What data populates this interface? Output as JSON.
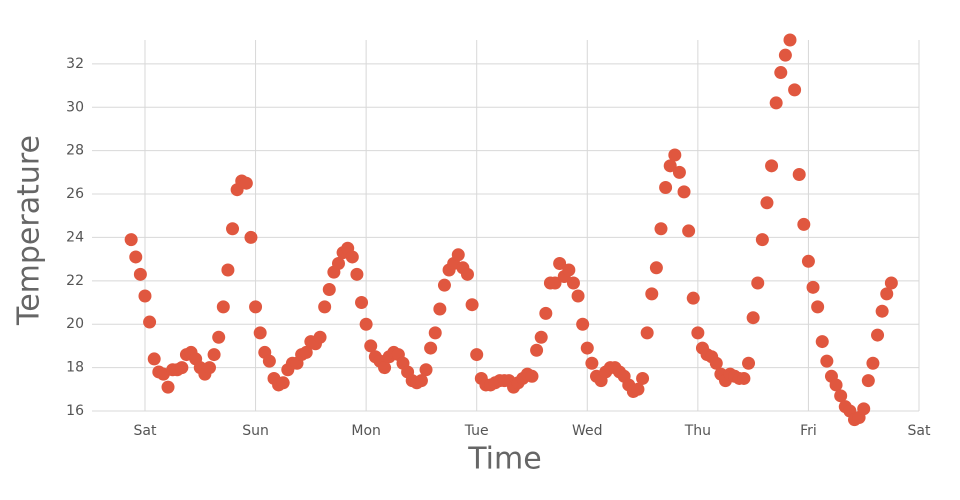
{
  "chart_data": {
    "type": "scatter",
    "x_label": "Time",
    "y_label": "Temperature",
    "color": "#e0573f",
    "grid": true,
    "xlim": [
      -11.5,
      168
    ],
    "ylim": [
      16,
      33.1
    ],
    "xticks": [
      {
        "value": 0,
        "label": "Sat"
      },
      {
        "value": 24,
        "label": "Sun"
      },
      {
        "value": 48,
        "label": "Mon"
      },
      {
        "value": 72,
        "label": "Tue"
      },
      {
        "value": 96,
        "label": "Wed"
      },
      {
        "value": 120,
        "label": "Thu"
      },
      {
        "value": 144,
        "label": "Fri"
      },
      {
        "value": 168,
        "label": "Sat"
      }
    ],
    "yticks": [
      16,
      18,
      20,
      22,
      24,
      26,
      28,
      30,
      32
    ],
    "x": [
      -3,
      -2,
      -1,
      0,
      1,
      2,
      3,
      4,
      5,
      6,
      7,
      8,
      9,
      10,
      11,
      12,
      13,
      14,
      15,
      16,
      17,
      18,
      19,
      20,
      21,
      22,
      23,
      24,
      25,
      26,
      27,
      28,
      29,
      30,
      31,
      32,
      33,
      34,
      35,
      36,
      37,
      38,
      39,
      40,
      41,
      42,
      43,
      44,
      45,
      46,
      47,
      48,
      49,
      50,
      51,
      52,
      53,
      54,
      55,
      56,
      57,
      58,
      59,
      60,
      61,
      62,
      63,
      64,
      65,
      66,
      67,
      68,
      69,
      70,
      71,
      72,
      73,
      74,
      75,
      76,
      77,
      78,
      79,
      80,
      81,
      82,
      83,
      84,
      85,
      86,
      87,
      88,
      89,
      90,
      91,
      92,
      93,
      94,
      95,
      96,
      97,
      98,
      99,
      100,
      101,
      102,
      103,
      104,
      105,
      106,
      107,
      108,
      109,
      110,
      111,
      112,
      113,
      114,
      115,
      116,
      117,
      118,
      119,
      120,
      121,
      122,
      123,
      124,
      125,
      126,
      127,
      128,
      129,
      130,
      131,
      132,
      133,
      134,
      135,
      136,
      137,
      138,
      139,
      140,
      141,
      142,
      143,
      144,
      145,
      146,
      147,
      148,
      149,
      150,
      151,
      152,
      153,
      154,
      155,
      156,
      157,
      158,
      159,
      160,
      161,
      162
    ],
    "values": [
      23.9,
      23.1,
      22.3,
      21.3,
      20.1,
      18.4,
      17.8,
      17.7,
      17.1,
      17.9,
      17.9,
      18.0,
      18.6,
      18.7,
      18.4,
      18.0,
      17.7,
      18.0,
      18.6,
      19.4,
      20.8,
      22.5,
      24.4,
      26.2,
      26.6,
      26.5,
      24.0,
      20.8,
      19.6,
      18.7,
      18.3,
      17.5,
      17.2,
      17.3,
      17.9,
      18.2,
      18.2,
      18.6,
      18.7,
      19.2,
      19.1,
      19.4,
      20.8,
      21.6,
      22.4,
      22.8,
      23.3,
      23.5,
      23.1,
      22.3,
      21.0,
      20.0,
      19.0,
      18.5,
      18.3,
      18.0,
      18.5,
      18.7,
      18.6,
      18.2,
      17.8,
      17.4,
      17.3,
      17.4,
      17.9,
      18.9,
      19.6,
      20.7,
      21.8,
      22.5,
      22.8,
      23.2,
      22.6,
      22.3,
      20.9,
      18.6,
      17.5,
      17.2,
      17.2,
      17.3,
      17.4,
      17.4,
      17.4,
      17.1,
      17.3,
      17.5,
      17.7,
      17.6,
      18.8,
      19.4,
      20.5,
      21.9,
      21.9,
      22.8,
      22.2,
      22.5,
      21.9,
      21.3,
      20.0,
      18.9,
      18.2,
      17.6,
      17.4,
      17.8,
      18.0,
      18.0,
      17.8,
      17.6,
      17.2,
      16.9,
      17.0,
      17.5,
      19.6,
      21.4,
      22.6,
      24.4,
      26.3,
      27.3,
      27.8,
      27.0,
      26.1,
      24.3,
      21.2,
      19.6,
      18.9,
      18.6,
      18.5,
      18.2,
      17.7,
      17.4,
      17.7,
      17.6,
      17.5,
      17.5,
      18.2,
      20.3,
      21.9,
      23.9,
      25.6,
      27.3,
      30.2,
      31.6,
      32.4,
      33.1,
      30.8,
      26.9,
      24.6,
      22.9,
      21.7,
      20.8,
      19.2,
      18.3,
      17.6,
      17.2,
      16.7,
      16.2,
      16.0,
      15.6,
      15.7,
      16.1,
      17.4,
      18.2,
      19.5,
      20.6,
      21.4,
      21.9
    ]
  }
}
